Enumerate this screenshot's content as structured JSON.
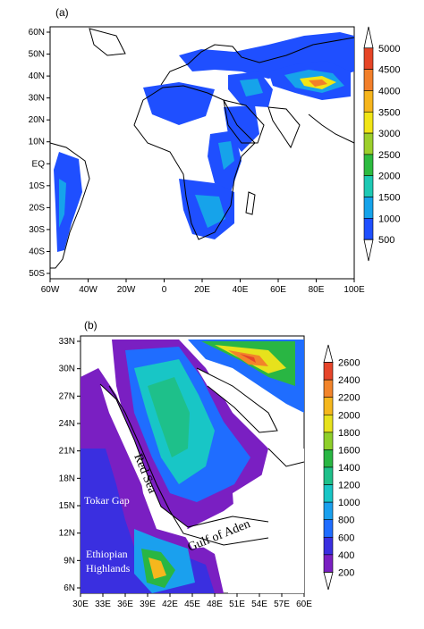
{
  "panel_a": {
    "label": "(a)",
    "lon_ticks": [
      "60W",
      "40W",
      "20W",
      "0",
      "20E",
      "40E",
      "60E",
      "80E",
      "100E"
    ],
    "lat_ticks": [
      "60N",
      "50N",
      "40N",
      "30N",
      "20N",
      "10N",
      "EQ",
      "10S",
      "20S",
      "30S",
      "40S",
      "50S"
    ],
    "colorbar": {
      "levels": [
        "500",
        "1000",
        "1500",
        "2000",
        "2500",
        "3000",
        "3500",
        "4000",
        "4500",
        "5000"
      ],
      "colors": [
        "#ffffff",
        "#1f4fff",
        "#16a3ea",
        "#1ec9b4",
        "#2dbb40",
        "#9ccf2b",
        "#f1e516",
        "#f6b51c",
        "#f27f2a",
        "#e64526",
        "#ffffff"
      ]
    }
  },
  "panel_b": {
    "label": "(b)",
    "lon_ticks": [
      "30E",
      "33E",
      "36E",
      "39E",
      "42E",
      "45E",
      "48E",
      "51E",
      "54E",
      "57E",
      "60E"
    ],
    "lat_ticks": [
      "33N",
      "30N",
      "27N",
      "24N",
      "21N",
      "18N",
      "15N",
      "12N",
      "9N",
      "6N"
    ],
    "annotations": {
      "red_sea": "Red Sea",
      "gulf_of_aden": "Gulf of Aden",
      "tokar_gap": "Tokar Gap",
      "ethiopian": "Ethiopian",
      "highlands": "Highlands"
    },
    "colorbar": {
      "levels": [
        "200",
        "400",
        "600",
        "800",
        "1000",
        "1200",
        "1400",
        "1600",
        "1800",
        "2000",
        "2200",
        "2400",
        "2600"
      ],
      "colors": [
        "#ffffff",
        "#7a1fc2",
        "#3a2fe0",
        "#1f6dff",
        "#1aa0ee",
        "#18c6c6",
        "#1ec08a",
        "#29b643",
        "#8ecf2a",
        "#e7e21c",
        "#f5b71d",
        "#f2842a",
        "#e6452a",
        "#ffffff"
      ]
    }
  }
}
